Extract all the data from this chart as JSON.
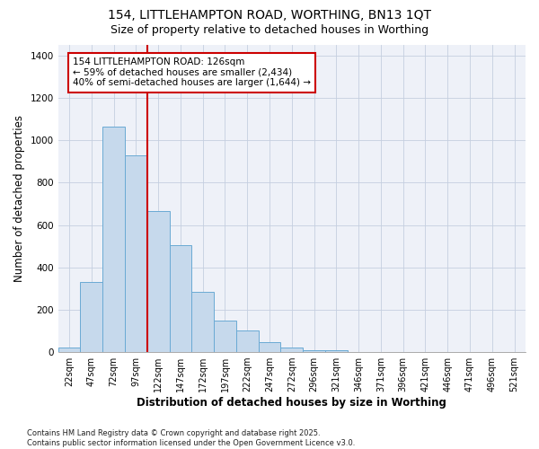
{
  "title_line1": "154, LITTLEHAMPTON ROAD, WORTHING, BN13 1QT",
  "title_line2": "Size of property relative to detached houses in Worthing",
  "xlabel": "Distribution of detached houses by size in Worthing",
  "ylabel": "Number of detached properties",
  "categories": [
    "22sqm",
    "47sqm",
    "72sqm",
    "97sqm",
    "122sqm",
    "147sqm",
    "172sqm",
    "197sqm",
    "222sqm",
    "247sqm",
    "272sqm",
    "296sqm",
    "321sqm",
    "346sqm",
    "371sqm",
    "396sqm",
    "421sqm",
    "446sqm",
    "471sqm",
    "496sqm",
    "521sqm"
  ],
  "values": [
    20,
    330,
    1065,
    930,
    665,
    505,
    285,
    150,
    100,
    45,
    20,
    10,
    10,
    0,
    0,
    0,
    0,
    0,
    0,
    0,
    0
  ],
  "bar_color": "#c6d9ec",
  "bar_edgecolor": "#6aaad4",
  "bar_linewidth": 0.7,
  "vline_index": 4,
  "annotation_text": "154 LITTLEHAMPTON ROAD: 126sqm\n← 59% of detached houses are smaller (2,434)\n40% of semi-detached houses are larger (1,644) →",
  "annotation_box_facecolor": "#ffffff",
  "annotation_box_edgecolor": "#cc0000",
  "vline_color": "#cc0000",
  "vline_linewidth": 1.5,
  "ylim": [
    0,
    1450
  ],
  "grid_color": "#c5cfe0",
  "background_color": "#ffffff",
  "plot_background_color": "#eef1f8",
  "footer_line1": "Contains HM Land Registry data © Crown copyright and database right 2025.",
  "footer_line2": "Contains public sector information licensed under the Open Government Licence v3.0.",
  "title_fontsize": 10,
  "subtitle_fontsize": 9,
  "axis_label_fontsize": 8.5,
  "tick_fontsize": 7,
  "annotation_fontsize": 7.5,
  "footer_fontsize": 6
}
